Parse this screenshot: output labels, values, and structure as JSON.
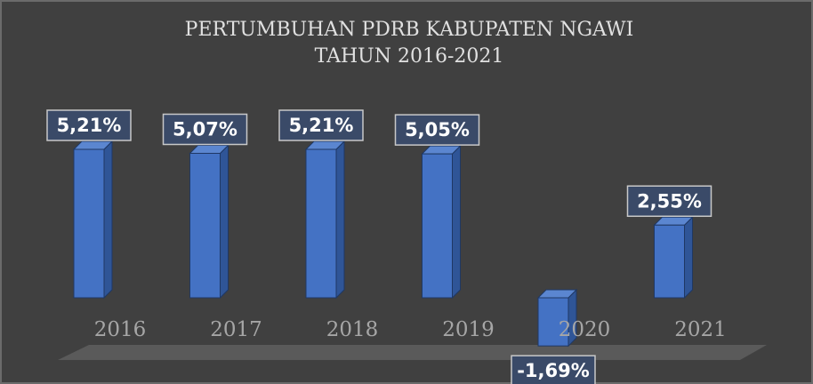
{
  "chart_data": {
    "type": "bar3d",
    "title": "PERTUMBUHAN PDRB KABUPATEN NGAWI",
    "subtitle": "TAHUN 2016-2021",
    "categories": [
      "2016",
      "2017",
      "2018",
      "2019",
      "2020",
      "2021"
    ],
    "values": [
      5.21,
      5.07,
      5.21,
      5.05,
      -1.69,
      2.55
    ],
    "value_labels": [
      "5,21%",
      "5,07%",
      "5,21%",
      "5,05%",
      "-1,69%",
      "2,55%"
    ],
    "color": "#4472c4"
  }
}
